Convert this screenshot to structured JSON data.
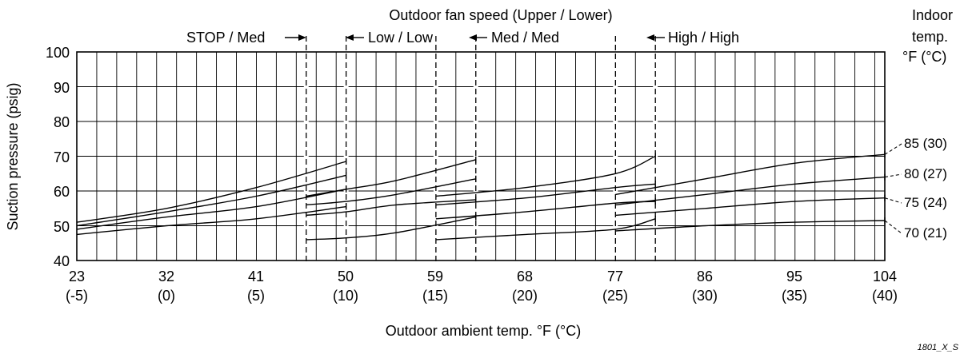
{
  "chart_data": {
    "type": "line",
    "title": "Outdoor fan speed (Upper / Lower)",
    "xlabel": "Outdoor ambient temp. °F (°C)",
    "ylabel": "Suction pressure (psig)",
    "xlim": [
      23,
      104
    ],
    "ylim": [
      40,
      100
    ],
    "grid": true,
    "x_ticks": [
      {
        "f": "23",
        "c": "(-5)"
      },
      {
        "f": "32",
        "c": "(0)"
      },
      {
        "f": "41",
        "c": "(5)"
      },
      {
        "f": "50",
        "c": "(10)"
      },
      {
        "f": "59",
        "c": "(15)"
      },
      {
        "f": "68",
        "c": "(20)"
      },
      {
        "f": "77",
        "c": "(25)"
      },
      {
        "f": "86",
        "c": "(30)"
      },
      {
        "f": "95",
        "c": "(35)"
      },
      {
        "f": "104",
        "c": "(40)"
      }
    ],
    "y_ticks": [
      "100",
      "90",
      "80",
      "70",
      "60",
      "50",
      "40"
    ],
    "legend_title": [
      "Indoor",
      "temp.",
      "°F (°C)"
    ],
    "fan_speed_labels": [
      "STOP / Med",
      "Low / Low",
      "Med / Med",
      "High / High"
    ],
    "fan_speed_boundaries": [
      {
        "from": 46,
        "to": 50
      },
      {
        "from": 59,
        "to": 63
      },
      {
        "from": 77,
        "to": 81
      }
    ],
    "series": [
      {
        "name": "85 (30)",
        "segments": [
          [
            [
              23,
              51
            ],
            [
              32,
              55
            ],
            [
              41,
              61
            ],
            [
              50,
              68.5
            ]
          ],
          [
            [
              46,
              58.5
            ],
            [
              50,
              60.5
            ],
            [
              55,
              63
            ],
            [
              63,
              69
            ]
          ],
          [
            [
              59,
              58.5
            ],
            [
              68,
              61
            ],
            [
              77,
              65
            ],
            [
              81,
              70
            ]
          ],
          [
            [
              77,
              59
            ],
            [
              86,
              63.5
            ],
            [
              95,
              68
            ],
            [
              104,
              70.5
            ]
          ]
        ]
      },
      {
        "name": "80 (27)",
        "segments": [
          [
            [
              23,
              50
            ],
            [
              32,
              54
            ],
            [
              41,
              58.5
            ],
            [
              50,
              64.5
            ]
          ],
          [
            [
              46,
              56
            ],
            [
              50,
              57
            ],
            [
              55,
              59
            ],
            [
              63,
              63.5
            ]
          ],
          [
            [
              59,
              56
            ],
            [
              68,
              58
            ],
            [
              77,
              61
            ],
            [
              81,
              62
            ]
          ],
          [
            [
              77,
              56
            ],
            [
              86,
              59
            ],
            [
              95,
              62
            ],
            [
              104,
              64
            ]
          ]
        ]
      },
      {
        "name": "75 (24)",
        "segments": [
          [
            [
              23,
              49
            ],
            [
              32,
              52.5
            ],
            [
              41,
              55.5
            ],
            [
              50,
              60.5
            ]
          ],
          [
            [
              46,
              53
            ],
            [
              50,
              54
            ],
            [
              55,
              56
            ],
            [
              63,
              57.5
            ]
          ],
          [
            [
              59,
              52
            ],
            [
              68,
              54
            ],
            [
              77,
              56.5
            ],
            [
              81,
              57
            ]
          ],
          [
            [
              77,
              53
            ],
            [
              86,
              55
            ],
            [
              95,
              57
            ],
            [
              104,
              58
            ]
          ]
        ]
      },
      {
        "name": "70 (21)",
        "segments": [
          [
            [
              23,
              47.5
            ],
            [
              32,
              50
            ],
            [
              41,
              52
            ],
            [
              50,
              55.5
            ]
          ],
          [
            [
              46,
              46
            ],
            [
              50,
              46.5
            ],
            [
              55,
              48
            ],
            [
              63,
              52.5
            ]
          ],
          [
            [
              59,
              46
            ],
            [
              68,
              47.5
            ],
            [
              77,
              49
            ],
            [
              81,
              52
            ]
          ],
          [
            [
              77,
              48.5
            ],
            [
              86,
              50
            ],
            [
              95,
              51
            ],
            [
              104,
              51.5
            ]
          ]
        ]
      }
    ],
    "figure_code": "1801_X_S"
  }
}
